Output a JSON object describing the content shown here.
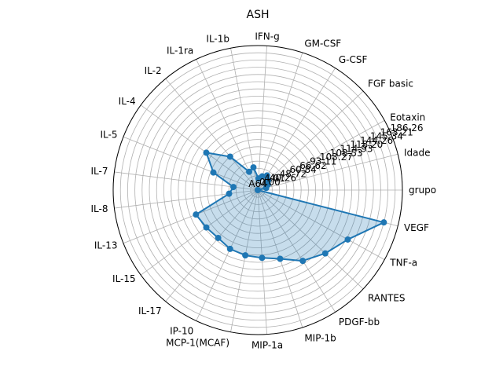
{
  "chart_data": {
    "type": "radar",
    "title": "ASH",
    "categories": [
      "grupo",
      "Idade",
      "Eotaxin",
      "FGF basic",
      "G-CSF",
      "GM-CSF",
      "IFN-g",
      "IL-1b",
      "IL-1ra",
      "IL-2",
      "IL-4",
      "IL-5",
      "IL-7",
      "IL-8",
      "IL-13",
      "IL-15",
      "IL-17",
      "IP-10",
      "MCP-1(MCAF)",
      "MIP-1a",
      "MIP-1b",
      "PDGF-bb",
      "RANTES",
      "TNF-a",
      "VEGF"
    ],
    "radial_tick_labels": [
      "0.00",
      "40.26",
      "48.72",
      "60.84",
      "66.62",
      "93.11",
      "103.27",
      "108.53",
      "114.93",
      "118.20",
      "144.26",
      "145.34",
      "163.21",
      "186.26"
    ],
    "radial_tick_levels": [
      0,
      1,
      2,
      3,
      4,
      5,
      6,
      7,
      8,
      9,
      10,
      11,
      12,
      13
    ],
    "ring_levels": [
      0.05,
      0.1,
      0.15,
      0.2,
      0.25,
      0.3,
      0.35,
      0.4,
      0.45,
      0.5,
      0.55,
      0.6,
      0.65,
      0.7,
      0.75,
      0.8,
      0.85,
      0.9,
      0.95,
      1.0
    ],
    "series": [
      {
        "values": [
          0.0,
          0.06,
          0.08,
          0.1,
          0.12,
          0.1,
          0.08,
          0.16,
          0.14,
          0.3,
          0.44,
          0.33,
          0.17,
          0.2,
          0.46,
          0.44,
          0.43,
          0.45,
          0.46,
          0.47,
          0.5,
          0.58,
          0.64,
          0.71,
          0.9
        ],
        "color": "#1f77b4",
        "fill_color": "#1f77b4"
      }
    ],
    "extra_tick_text": [
      "A64",
      "4.01"
    ],
    "grid": true
  }
}
